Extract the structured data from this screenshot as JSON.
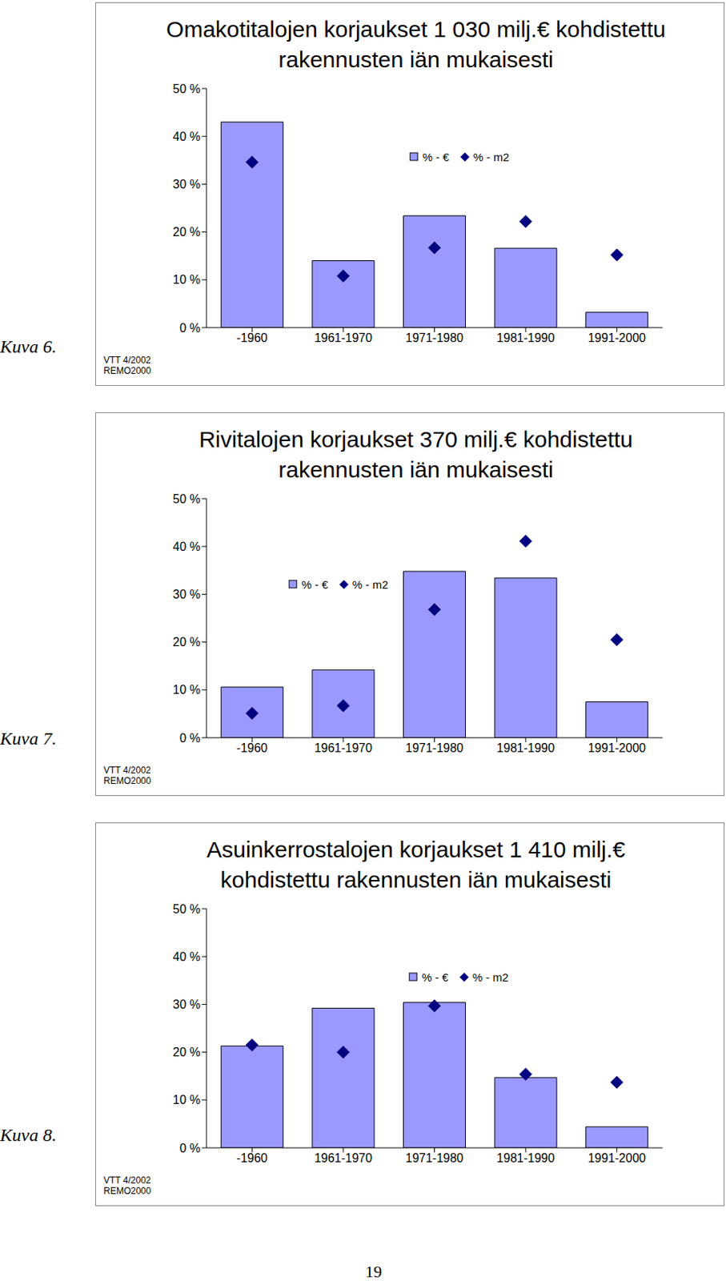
{
  "chart_data": [
    {
      "type": "bar",
      "figure_label": "Kuva 6.",
      "title": "Omakotitalojen korjaukset 1 030 milj.€ kohdistettu rakennusten iän mukaisesti",
      "source": [
        "VTT 4/2002",
        "REMO2000"
      ],
      "categories": [
        "-1960",
        "1961-1970",
        "1971-1980",
        "1981-1990",
        "1991-2000"
      ],
      "series": [
        {
          "name": "% - €",
          "type": "bar",
          "color": "#9999ff",
          "values": [
            43,
            14,
            23.4,
            16.6,
            3.2
          ]
        },
        {
          "name": "% - m2",
          "type": "scatter",
          "marker": "diamond",
          "color": "#000080",
          "values": [
            34.6,
            10.8,
            16.7,
            22.2,
            15.2
          ]
        }
      ],
      "ylim": [
        0,
        50
      ],
      "yticks": [
        {
          "value": 0,
          "label": "0 %"
        },
        {
          "value": 10,
          "label": "10 %"
        },
        {
          "value": 20,
          "label": "20 %"
        },
        {
          "value": 30,
          "label": "30 %"
        },
        {
          "value": 40,
          "label": "40 %"
        },
        {
          "value": 50,
          "label": "50 %"
        }
      ],
      "grid": false,
      "legend": "top"
    },
    {
      "type": "bar",
      "figure_label": "Kuva 7.",
      "title": "Rivitalojen korjaukset 370 milj.€ kohdistettu rakennusten iän mukaisesti",
      "source": [
        "VTT 4/2002",
        "REMO2000"
      ],
      "categories": [
        "-1960",
        "1961-1970",
        "1971-1980",
        "1981-1990",
        "1991-2000"
      ],
      "series": [
        {
          "name": "% - €",
          "type": "bar",
          "color": "#9999ff",
          "values": [
            10.6,
            14.2,
            34.8,
            33.4,
            7.5
          ]
        },
        {
          "name": "% - m2",
          "type": "scatter",
          "marker": "diamond",
          "color": "#000080",
          "values": [
            5.1,
            6.7,
            26.8,
            41.1,
            20.5
          ]
        }
      ],
      "ylim": [
        0,
        50
      ],
      "yticks": [
        {
          "value": 0,
          "label": "0 %"
        },
        {
          "value": 10,
          "label": "10 %"
        },
        {
          "value": 20,
          "label": "20 %"
        },
        {
          "value": 30,
          "label": "30 %"
        },
        {
          "value": 40,
          "label": "40 %"
        },
        {
          "value": 50,
          "label": "50 %"
        }
      ],
      "grid": false,
      "legend": "top"
    },
    {
      "type": "bar",
      "figure_label": "Kuva 8.",
      "title": "Asuinkerrostalojen korjaukset 1 410 milj.€ kohdistettu rakennusten iän mukaisesti",
      "source": [
        "VTT 4/2002",
        "REMO2000"
      ],
      "categories": [
        "-1960",
        "1961-1970",
        "1971-1980",
        "1981-1990",
        "1991-2000"
      ],
      "series": [
        {
          "name": "% - €",
          "type": "bar",
          "color": "#9999ff",
          "values": [
            21.3,
            29.2,
            30.4,
            14.7,
            4.4
          ]
        },
        {
          "name": "% - m2",
          "type": "scatter",
          "marker": "diamond",
          "color": "#000080",
          "values": [
            21.5,
            20.0,
            29.7,
            15.4,
            13.7
          ]
        }
      ],
      "ylim": [
        0,
        50
      ],
      "yticks": [
        {
          "value": 0,
          "label": "0 %"
        },
        {
          "value": 10,
          "label": "10 %"
        },
        {
          "value": 20,
          "label": "20 %"
        },
        {
          "value": 30,
          "label": "30 %"
        },
        {
          "value": 40,
          "label": "40 %"
        },
        {
          "value": 50,
          "label": "50 %"
        }
      ],
      "grid": false,
      "legend": "top"
    }
  ],
  "page": {
    "number": "19"
  }
}
